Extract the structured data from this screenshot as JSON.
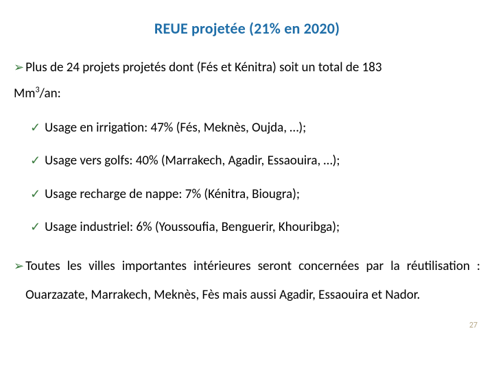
{
  "colors": {
    "title": "#1f6ea8",
    "bullet": "#3b7c3f",
    "text": "#000000",
    "background": "#ffffff",
    "pageNum": "#b7a98a"
  },
  "title": "REUE projetée (21% en 2020)",
  "arrowGlyph": "➢",
  "checkGlyph": "✓",
  "para1_lead": "Plus de 24 projets projetés dont (Fés et Kénitra) soit un total de 183",
  "para1_cont_pre": "Mm",
  "para1_cont_sup": "3",
  "para1_cont_post": "/an:",
  "checks": [
    "Usage en irrigation: 47% (Fés, Meknès, Oujda, …);",
    "Usage vers golfs: 40% (Marrakech, Agadir, Essaouira, …);",
    "Usage recharge de nappe: 7% (Kénitra, Biougra);",
    "Usage industriel: 6% (Youssoufia, Benguerir, Khouribga);"
  ],
  "para2": "Toutes les villes importantes intérieures seront concernées par la réutilisation : Ouarzazate, Marrakech, Meknès, Fès mais aussi Agadir, Essaouira et Nador.",
  "pageNumber": "27"
}
